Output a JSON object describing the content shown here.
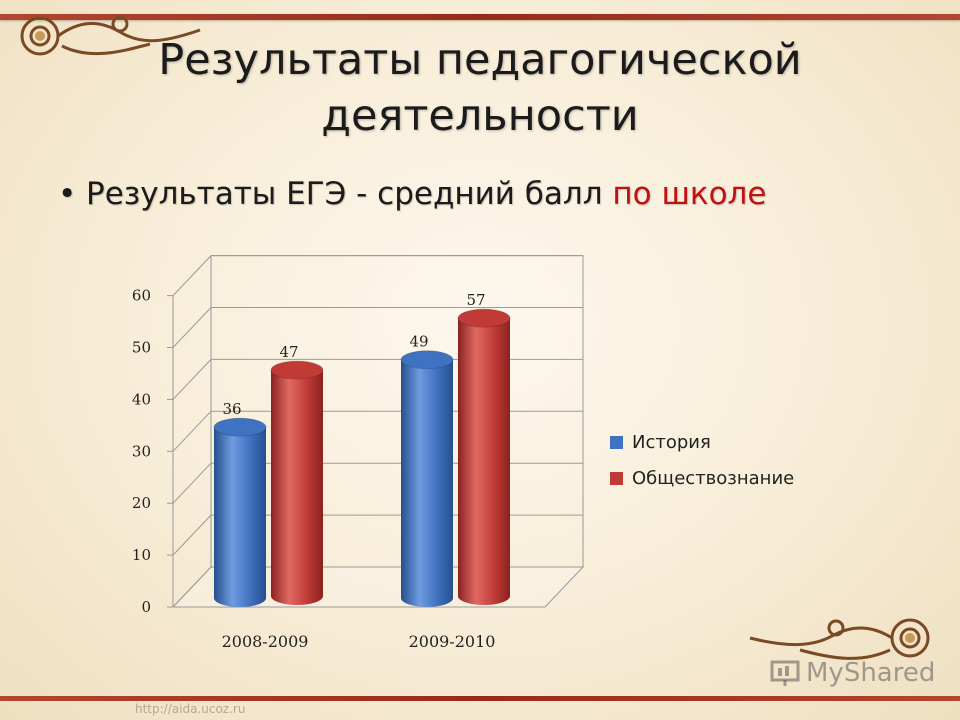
{
  "slide": {
    "title_line1": "Результаты педагогической",
    "title_line2": "деятельности",
    "bullet_symbol": "•",
    "bullet_text": "Результаты ЕГЭ -  средний балл ",
    "bullet_highlight": "по школе",
    "watermark": "MyShared",
    "url": "http://aida.ucoz.ru"
  },
  "colors": {
    "series1": "#3f72c0",
    "series2": "#c03a36",
    "highlight": "#c01212",
    "frame": "#9a2a18"
  },
  "chart_data": {
    "type": "bar",
    "categories": [
      "2008-2009",
      "2009-2010"
    ],
    "series": [
      {
        "name": "История",
        "values": [
          36,
          49
        ],
        "color": "#3f72c0"
      },
      {
        "name": "Обществознание",
        "values": [
          47,
          57
        ],
        "color": "#c03a36"
      }
    ],
    "yticks": [
      "0",
      "10",
      "20",
      "30",
      "40",
      "50",
      "60"
    ],
    "ylim": [
      0,
      60
    ],
    "legend_position": "right",
    "grid": true,
    "style": "3d-cylinder",
    "xlabel": "",
    "ylabel": ""
  }
}
